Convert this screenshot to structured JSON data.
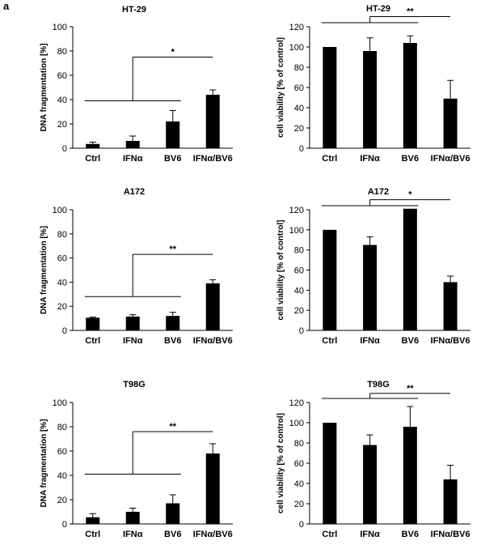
{
  "panel_label": "a",
  "colors": {
    "bar": "#000000",
    "axis": "#000000",
    "background": "#ffffff"
  },
  "chart_data": [
    {
      "id": "ht29-dna",
      "type": "bar",
      "title": "HT-29",
      "ylabel": "DNA  fragmentation [%]",
      "xlabel": "",
      "categories": [
        "Ctrl",
        "IFNα",
        "BV6",
        "IFNα/BV6"
      ],
      "values": [
        3.5,
        6,
        22,
        44
      ],
      "errors": [
        1.5,
        4,
        9,
        4
      ],
      "ylim": [
        0,
        100
      ],
      "yticks": [
        0,
        20,
        40,
        60,
        80,
        100
      ],
      "significance": {
        "label": "*",
        "group": [
          0,
          1,
          2
        ],
        "versus": 3,
        "bracket_y": 75,
        "base_y": 39
      }
    },
    {
      "id": "ht29-viability",
      "type": "bar",
      "title": "HT-29",
      "ylabel": "cell viability [% of control]",
      "xlabel": "",
      "categories": [
        "Ctrl",
        "IFNα",
        "BV6",
        "IFNα/BV6"
      ],
      "values": [
        100,
        96,
        104,
        49
      ],
      "errors": [
        0,
        13,
        7,
        18
      ],
      "ylim": [
        0,
        120
      ],
      "yticks": [
        0,
        20,
        40,
        60,
        80,
        100,
        120
      ],
      "significance": {
        "label": "**",
        "group": [
          0,
          1,
          2
        ],
        "versus": 3,
        "bracket_y": 130,
        "base_y": 124
      }
    },
    {
      "id": "a172-dna",
      "type": "bar",
      "title": "A172",
      "ylabel": "DNA  fragmentation [%]",
      "xlabel": "",
      "categories": [
        "Ctrl",
        "IFNα",
        "BV6",
        "IFNα/BV6"
      ],
      "values": [
        10.5,
        11.5,
        12,
        39
      ],
      "errors": [
        0.5,
        1.5,
        3,
        3
      ],
      "ylim": [
        0,
        100
      ],
      "yticks": [
        0,
        20,
        40,
        60,
        80,
        100
      ],
      "significance": {
        "label": "**",
        "group": [
          0,
          1,
          2
        ],
        "versus": 3,
        "bracket_y": 63,
        "base_y": 28
      }
    },
    {
      "id": "a172-viability",
      "type": "bar",
      "title": "A172",
      "ylabel": "cell viability [% of control]",
      "xlabel": "",
      "categories": [
        "Ctrl",
        "IFNα",
        "BV6",
        "IFNα/BV6"
      ],
      "values": [
        100,
        85,
        121,
        48
      ],
      "errors": [
        0,
        8,
        0,
        6
      ],
      "ylim": [
        0,
        120
      ],
      "yticks": [
        0,
        20,
        40,
        60,
        80,
        100,
        120
      ],
      "significance": {
        "label": "*",
        "group": [
          0,
          1,
          2
        ],
        "versus": 3,
        "bracket_y": 130,
        "base_y": 124
      }
    },
    {
      "id": "t98g-dna",
      "type": "bar",
      "title": "T98G",
      "ylabel": "DNA  fragmentation [%]",
      "xlabel": "",
      "categories": [
        "Ctrl",
        "IFNα",
        "BV6",
        "IFNα/BV6"
      ],
      "values": [
        5.5,
        10,
        17,
        58
      ],
      "errors": [
        3,
        3,
        7,
        8
      ],
      "ylim": [
        0,
        100
      ],
      "yticks": [
        0,
        20,
        40,
        60,
        80,
        100
      ],
      "significance": {
        "label": "**",
        "group": [
          0,
          1,
          2
        ],
        "versus": 3,
        "bracket_y": 76,
        "base_y": 41
      }
    },
    {
      "id": "t98g-viability",
      "type": "bar",
      "title": "T98G",
      "ylabel": "cell viability [% of control]",
      "xlabel": "",
      "categories": [
        "Ctrl",
        "IFNα",
        "BV6",
        "IFNα/BV6"
      ],
      "values": [
        100,
        78,
        96,
        44
      ],
      "errors": [
        0,
        10,
        20,
        14
      ],
      "ylim": [
        0,
        120
      ],
      "yticks": [
        0,
        20,
        40,
        60,
        80,
        100,
        120
      ],
      "significance": {
        "label": "**",
        "group": [
          0,
          1,
          2
        ],
        "versus": 3,
        "bracket_y": 129,
        "base_y": 124
      }
    }
  ]
}
